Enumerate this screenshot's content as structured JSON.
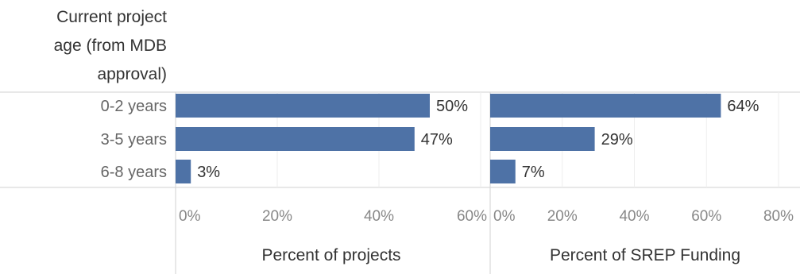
{
  "chart_data": {
    "type": "bar",
    "orientation": "horizontal",
    "row_header": [
      "Current project",
      "age (from MDB",
      "approval)"
    ],
    "categories": [
      "0-2 years",
      "3-5 years",
      "6-8 years"
    ],
    "color": "#4e72a6",
    "grid": true,
    "panels": [
      {
        "xlabel": "Percent of projects",
        "xlim": [
          0,
          60
        ],
        "ticks": [
          0,
          20,
          40,
          60
        ],
        "tick_labels": [
          "0%",
          "20%",
          "40%",
          "60%"
        ],
        "values": [
          50,
          47,
          3
        ],
        "value_labels": [
          "50%",
          "47%",
          "3%"
        ]
      },
      {
        "xlabel": "Percent of SREP Funding",
        "xlim": [
          0,
          80
        ],
        "ticks": [
          0,
          20,
          40,
          60,
          80
        ],
        "tick_labels": [
          "0%",
          "20%",
          "40%",
          "60%",
          "80%"
        ],
        "values": [
          64,
          29,
          7
        ],
        "value_labels": [
          "64%",
          "29%",
          "7%"
        ]
      }
    ]
  }
}
